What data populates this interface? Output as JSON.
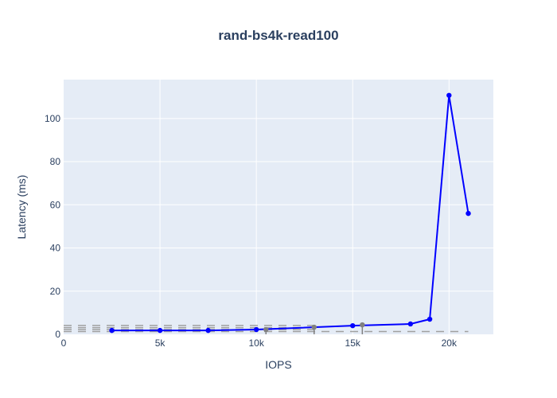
{
  "chart_data": {
    "type": "line",
    "title": "rand-bs4k-read100",
    "xlabel": "IOPS",
    "ylabel": "Latency (ms)",
    "xlim": [
      0,
      22300
    ],
    "ylim": [
      0,
      118
    ],
    "grid": true,
    "x_ticks": [
      {
        "v": 0,
        "label": "0"
      },
      {
        "v": 5000,
        "label": "5k"
      },
      {
        "v": 10000,
        "label": "10k"
      },
      {
        "v": 15000,
        "label": "15k"
      },
      {
        "v": 20000,
        "label": "20k"
      }
    ],
    "y_ticks": [
      {
        "v": 0,
        "label": "0"
      },
      {
        "v": 20,
        "label": "20"
      },
      {
        "v": 40,
        "label": "40"
      },
      {
        "v": 60,
        "label": "60"
      },
      {
        "v": 80,
        "label": "80"
      },
      {
        "v": 100,
        "label": "100"
      }
    ],
    "series": [
      {
        "color": "#0000ff",
        "mode": "lines+markers",
        "x": [
          2500,
          5000,
          7500,
          10000,
          15000,
          18000,
          19000,
          20000,
          21000
        ],
        "y": [
          1.8,
          1.8,
          1.8,
          2.2,
          4.0,
          4.8,
          7.0,
          110.7,
          56.0
        ]
      },
      {
        "color": "#808080",
        "mode": "markers+error_bars",
        "x": [
          10500,
          13000,
          15500
        ],
        "y": [
          2.2,
          3.3,
          4.4
        ],
        "error_minus": [
          2.2,
          3.3,
          4.4
        ]
      }
    ],
    "reference_lines": [
      {
        "y": 4.1,
        "x": [
          0,
          13000
        ],
        "color": "#a0a0a0",
        "dash": "dash"
      },
      {
        "y": 3.1,
        "x": [
          0,
          13000
        ],
        "color": "#a0a0a0",
        "dash": "dash"
      },
      {
        "y": 2.2,
        "x": [
          0,
          13000
        ],
        "color": "#a0a0a0",
        "dash": "dash"
      },
      {
        "y": 1.3,
        "x": [
          0,
          21000
        ],
        "color": "#a0a0a0",
        "dash": "dash"
      }
    ],
    "plot_bg": "#e5ecf6"
  }
}
